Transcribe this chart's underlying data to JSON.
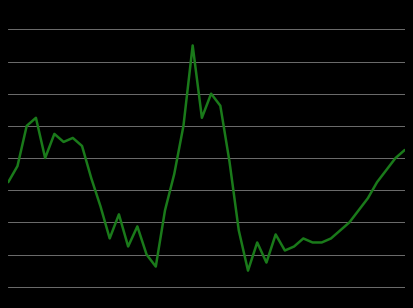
{
  "background_color": "#000000",
  "plot_bg_color": "#000000",
  "line_color": "#1a7a1a",
  "line_width": 1.8,
  "grid_color": "#ffffff",
  "grid_alpha": 0.5,
  "grid_linewidth": 0.6,
  "y_values": [
    2,
    6,
    16,
    18,
    8,
    14,
    12,
    13,
    11,
    3,
    -4,
    -12,
    -6,
    -14,
    -9,
    -16,
    -19,
    -5,
    4,
    16,
    36,
    18,
    24,
    21,
    7,
    -10,
    -20,
    -13,
    -18,
    -11,
    -15,
    -14,
    -12,
    -13,
    -13,
    -12,
    -10,
    -8,
    -5,
    -2,
    2,
    5,
    8,
    10
  ],
  "ylim": [
    -27,
    45
  ],
  "yticks": [
    -24,
    -16,
    -8,
    0,
    8,
    16,
    24,
    32,
    40
  ],
  "num_points": 44
}
